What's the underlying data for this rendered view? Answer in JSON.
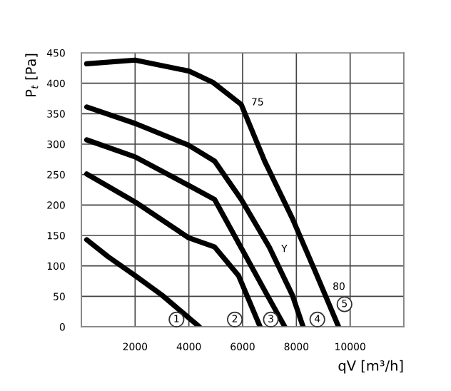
{
  "chart_data": {
    "type": "line",
    "xlabel": "qV [m³/h]",
    "ylabel": "P$_{t}$ [Pa]",
    "xlim": [
      0,
      12000
    ],
    "ylim": [
      0,
      450
    ],
    "xticks": [
      {
        "value": 0,
        "label": null
      },
      2000,
      4000,
      6000,
      8000,
      10000,
      {
        "value": 12000,
        "label": null
      }
    ],
    "yticks": [
      0,
      50,
      100,
      150,
      200,
      250,
      300,
      350,
      400,
      450
    ],
    "grid": true,
    "marker": "none",
    "line_style": "solid",
    "legend": false,
    "series": [
      {
        "color": "#000000",
        "x": [
          200,
          1000,
          2000,
          3000,
          4390
        ],
        "values": [
          143,
          115,
          84,
          52,
          0
        ]
      },
      {
        "color": "#000000",
        "x": [
          200,
          2000,
          4000,
          4960,
          5850,
          6650
        ],
        "values": [
          251,
          205,
          146,
          131,
          84,
          0
        ]
      },
      {
        "color": "#000000",
        "x": [
          200,
          2000,
          4000,
          4960,
          6030,
          6915,
          7570
        ],
        "values": [
          307,
          279,
          232,
          209,
          123,
          52,
          0
        ]
      },
      {
        "color": "#000000",
        "x": [
          200,
          2000,
          4000,
          4960,
          5950,
          6990,
          7850,
          8250
        ],
        "values": [
          361,
          334,
          298,
          272,
          209,
          131,
          52,
          0
        ]
      },
      {
        "color": "#000000",
        "x": [
          200,
          2000,
          4000,
          4910,
          5950,
          6820,
          7850,
          8700,
          9570
        ],
        "values": [
          432,
          438,
          420,
          401,
          365,
          272,
          178,
          91,
          0
        ]
      }
    ],
    "annotations": [
      {
        "text": "1",
        "x": 3540,
        "y": 12
      },
      {
        "text": "2",
        "x": 5710,
        "y": 12
      },
      {
        "text": "3",
        "x": 7050,
        "y": 12
      },
      {
        "text": "4",
        "x": 8780,
        "y": 12
      },
      {
        "text": "5",
        "x": 9790,
        "y": 37
      },
      {
        "text": "75",
        "x": 5950,
        "y": 365
      },
      {
        "text": "Y",
        "x": 7070,
        "y": 124
      },
      {
        "text": "80",
        "x": 8980,
        "y": 62
      }
    ]
  }
}
